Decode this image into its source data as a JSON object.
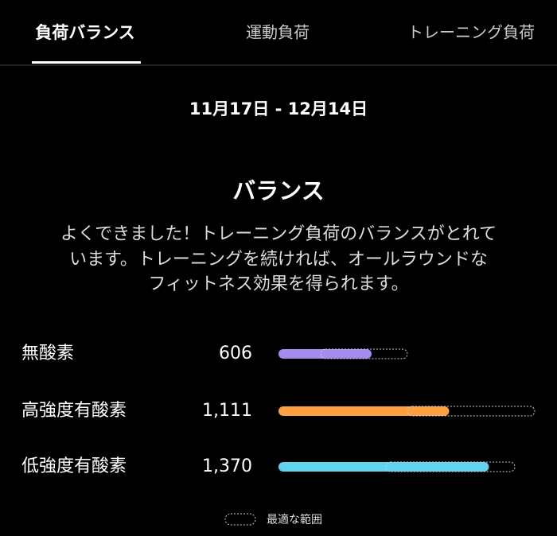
{
  "tabs": [
    "負荷バランス",
    "運動負荷",
    "トレーニング負荷"
  ],
  "date_range": "11月17日 - 12月14日",
  "title": "バランス",
  "description": [
    "よくできました！トレーニング負荷のバランスがとれて",
    "います。トレーニングを続ければ、オールラウンドな",
    "フィットネス効果を得られます。"
  ],
  "rows": [
    {
      "label": "無酸素",
      "value": 606,
      "value_label": "606",
      "color": "#a58af0",
      "optimal_range": [
        275,
        839
      ]
    },
    {
      "label": "高強度有酸素",
      "value": 1111,
      "value_label": "1,111",
      "color": "#ffa040",
      "optimal_range": [
        839,
        1668
      ]
    },
    {
      "label": "低強度有酸素",
      "value": 1370,
      "value_label": "1,370",
      "color": "#5fd4ec",
      "optimal_range": [
        700,
        1539
      ]
    }
  ],
  "legend": "最適な範囲"
}
